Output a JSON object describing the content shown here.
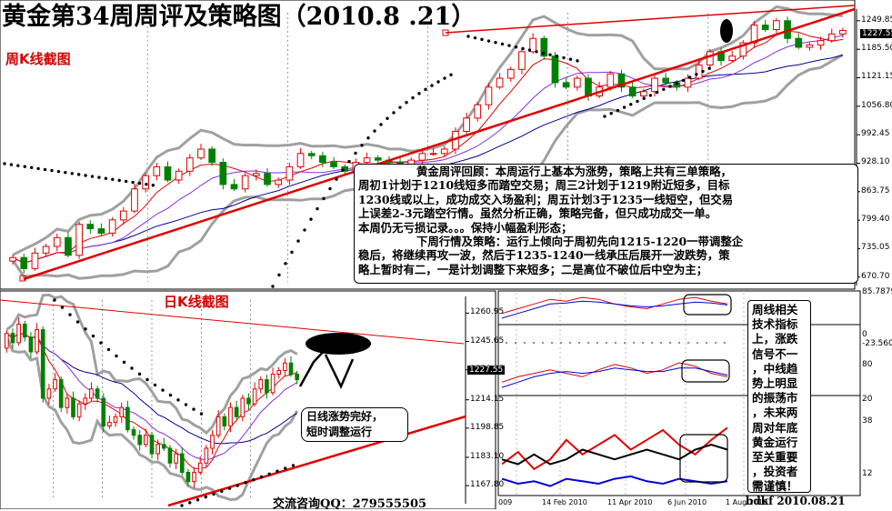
{
  "title": "黄金第34周周评及策略图（2010.8 .21）",
  "weekly_label": "周K线截图",
  "daily_label": "日K线截图",
  "weekly_axis": [
    "1249.85",
    "1185.50",
    "1121.15",
    "1056.80",
    "992.45",
    "928.10",
    "863.75",
    "799.40",
    "735.05",
    "670.70"
  ],
  "weekly_current": "1227.55",
  "daily_axis": [
    "1260.95",
    "1245.65",
    "1230.35",
    "1214.15",
    "1198.85",
    "1183.10",
    "1167.80"
  ],
  "daily_current": "1227.55",
  "indicator_axis": [
    "85.7879",
    "0",
    "-23.5606",
    "80",
    "20",
    "38",
    "12"
  ],
  "indicator_dates": [
    "009",
    "14 Feb 2010",
    "11 Apr 2010",
    "6 Jun 2010",
    "1 Aug 2010"
  ],
  "commentary": {
    "lines": [
      "黄金周评回顾：本周运行上基本为涨势，策略上共有三单策略，",
      "周初1计划于1210线短多而踏空交易；周三2计划于1219附近短多，目标",
      "1230线或以上，成功成交入场盈利；周五计划3于1235一线短空，但交易",
      "上误差2-3元踏空行情。虽然分析正确，策略完备，但只成功成交一单。",
      "本周仍无亏损记录。。。保持小幅盈利形态；",
      "下周行情及策略：运行上倾向于周初先向1215-1220一带调整企",
      "稳后，将继续再攻一波，然后于1235-1240一线承压后展开一波跌势，策",
      "略上暂时有二，一是计划调整下来短多；二是高位不破位后中空为主；"
    ]
  },
  "daily_note": [
    "日线涨势完好，",
    "短时调整运行"
  ],
  "indicator_note": [
    "周线相关",
    "技术指标",
    "上，涨跌",
    "信号不一",
    "，中线趋",
    "势上明显",
    "的振荡市",
    "，未来两",
    "周对年底",
    "黄金运行",
    "至关重要",
    "，投资者",
    "需谨慎！"
  ],
  "contact": "交流咨询QQ：279555505",
  "signature": "bdkf 2010.08.21",
  "colors": {
    "up": "#e00000",
    "down": "#008000",
    "ma_red": "#e00000",
    "ma_purple": "#8a2be2",
    "ma_blue": "#00008b",
    "band": "#a0a0a0",
    "trend": "#e00000",
    "dots": "#000000"
  },
  "chart_data": [
    {
      "type": "candlestick",
      "name_shown": "周K线截图",
      "timeframe": "weekly",
      "y_ticks": [
        1249.85,
        1185.5,
        1121.15,
        1056.8,
        992.45,
        928.1,
        863.75,
        799.4,
        735.05,
        670.7
      ],
      "ylim": [
        660,
        1268
      ],
      "current_price": 1227.55,
      "close": [
        715,
        690,
        725,
        740,
        760,
        720,
        790,
        780,
        770,
        800,
        820,
        870,
        900,
        920,
        890,
        910,
        940,
        960,
        930,
        880,
        870,
        900,
        905,
        880,
        890,
        920,
        950,
        945,
        930,
        920,
        910,
        930,
        940,
        935,
        930,
        920,
        935,
        950,
        950,
        960,
        1000,
        1030,
        1060,
        1100,
        1120,
        1140,
        1180,
        1210,
        1170,
        1110,
        1100,
        1120,
        1080,
        1100,
        1130,
        1100,
        1080,
        1090,
        1120,
        1110,
        1100,
        1120,
        1150,
        1180,
        1160,
        1170,
        1200,
        1240,
        1230,
        1250,
        1210,
        1190,
        1195,
        1205,
        1220,
        1228
      ]
    },
    {
      "type": "candlestick",
      "name_shown": "日K线截图",
      "timeframe": "daily",
      "y_ticks": [
        1260.95,
        1245.65,
        1230.35,
        1214.15,
        1198.85,
        1183.1,
        1167.8
      ],
      "ylim": [
        1160,
        1268
      ],
      "current_price": 1227.55,
      "close": [
        1250,
        1245,
        1255,
        1248,
        1240,
        1252,
        1215,
        1220,
        1225,
        1210,
        1215,
        1205,
        1212,
        1215,
        1220,
        1215,
        1200,
        1202,
        1205,
        1210,
        1198,
        1195,
        1190,
        1195,
        1185,
        1190,
        1188,
        1180,
        1185,
        1175,
        1170,
        1175,
        1180,
        1188,
        1195,
        1205,
        1200,
        1210,
        1205,
        1215,
        1212,
        1220,
        1225,
        1218,
        1228,
        1230,
        1234,
        1228,
        1225
      ]
    },
    {
      "type": "line",
      "name_shown": "",
      "x_ticks": [
        "009",
        "14 Feb 2010",
        "11 Apr 2010",
        "6 Jun 2010",
        "1 Aug 2010"
      ],
      "panels": [
        {
          "y_ticks": [
            85.7879,
            0,
            -23.5606
          ],
          "series": [
            {
              "color": "#e00000",
              "values": [
                45,
                50,
                55,
                60,
                58,
                62,
                60,
                55,
                52,
                50,
                55,
                60,
                62,
                58,
                55
              ]
            },
            {
              "color": "#0000e0",
              "values": [
                40,
                45,
                50,
                55,
                56,
                58,
                57,
                55,
                53,
                52,
                53,
                55,
                57,
                56,
                54
              ]
            }
          ]
        },
        {
          "y_ticks": [
            80,
            20
          ],
          "series": [
            {
              "color": "#e00000",
              "values": [
                55,
                58,
                60,
                62,
                60,
                58,
                62,
                65,
                63,
                60,
                62,
                66,
                64,
                60,
                58
              ]
            },
            {
              "color": "#0000e0",
              "values": [
                52,
                55,
                58,
                60,
                61,
                60,
                61,
                63,
                62,
                61,
                61,
                63,
                63,
                61,
                59
              ]
            }
          ]
        },
        {
          "y_ticks": [
            38,
            12
          ],
          "series": [
            {
              "color": "#e00000",
              "values": [
                20,
                25,
                18,
                22,
                30,
                24,
                28,
                32,
                26,
                30,
                34,
                28,
                24,
                30,
                35
              ]
            },
            {
              "color": "#000000",
              "values": [
                22,
                20,
                24,
                20,
                22,
                26,
                24,
                22,
                24,
                26,
                24,
                22,
                26,
                28,
                26
              ]
            },
            {
              "color": "#0000e0",
              "values": [
                14,
                12,
                13,
                11,
                14,
                13,
                12,
                14,
                15,
                13,
                12,
                14,
                13,
                12,
                13
              ]
            }
          ]
        }
      ]
    }
  ]
}
